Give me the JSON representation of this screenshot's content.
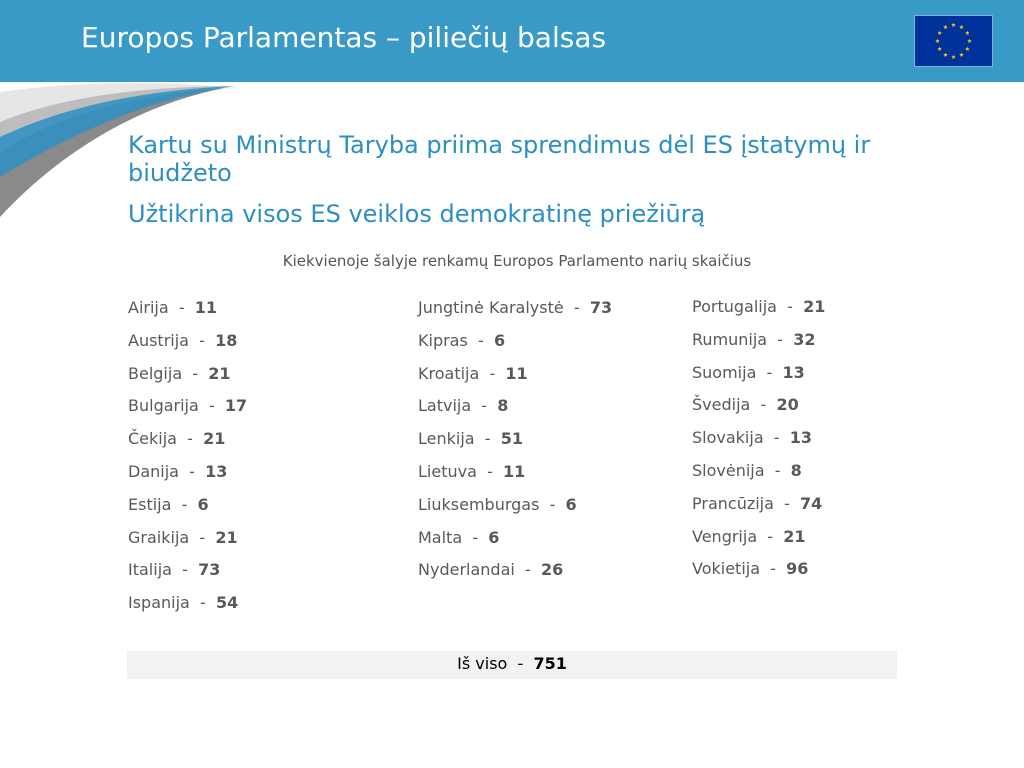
{
  "header": {
    "title": "Europos Parlamentas – piliečių balsas"
  },
  "colors": {
    "header_bg": "#3a9ac7",
    "accent_text": "#2b8fc4",
    "flag_blue": "#003399",
    "flag_star": "#ffcc00"
  },
  "icons": {
    "flag": "eu-flag-icon"
  },
  "bullets": [
    "Kartu su Ministrų Taryba priima sprendimus dėl ES įstatymų ir biudžeto",
    "Užtikrina visos ES veiklos demokratinę priežiūrą"
  ],
  "subtitle": "Kiekvienoje šalyje renkamų Europos Parlamento narių skaičius",
  "columns": [
    [
      {
        "name": "Airija",
        "sep": "-",
        "num": "11"
      },
      {
        "name": "Austrija",
        "sep": "-",
        "num": "18"
      },
      {
        "name": "Belgija",
        "sep": "-",
        "num": "21"
      },
      {
        "name": "Bulgarija",
        "sep": "-",
        "num": "17"
      },
      {
        "name": "Čekija",
        "sep": "-",
        "num": "21"
      },
      {
        "name": "Danija",
        "sep": "-",
        "num": "13"
      },
      {
        "name": "Estija",
        "sep": "-",
        "num": "6"
      },
      {
        "name": "Graikija",
        "sep": "-",
        "num": "21"
      },
      {
        "name": "Italija",
        "sep": "-",
        "num": "73"
      },
      {
        "name": "Ispanija",
        "sep": "-",
        "num": "54"
      }
    ],
    [
      {
        "name": "Jungtinė Karalystė",
        "sep": "-",
        "num": "73"
      },
      {
        "name": "Kipras",
        "sep": "-",
        "num": "6"
      },
      {
        "name": "Kroatija",
        "sep": "-",
        "num": "11"
      },
      {
        "name": "Latvija",
        "sep": "-",
        "num": "8"
      },
      {
        "name": "Lenkija",
        "sep": "-",
        "num": "51"
      },
      {
        "name": "Lietuva",
        "sep": "-",
        "num": "11"
      },
      {
        "name": "Liuksemburgas",
        "sep": "-",
        "num": "6"
      },
      {
        "name": "Malta",
        "sep": "-",
        "num": "6"
      },
      {
        "name": "Nyderlandai",
        "sep": "-",
        "num": "26"
      }
    ],
    [
      {
        "name": "Portugalija",
        "sep": "-",
        "num": "21"
      },
      {
        "name": "Rumunija",
        "sep": "-",
        "num": "32"
      },
      {
        "name": "Suomija",
        "sep": "-",
        "num": "13"
      },
      {
        "name": "Švedija",
        "sep": "-",
        "num": "20"
      },
      {
        "name": "Slovakija",
        "sep": "-",
        "num": "13"
      },
      {
        "name": "Slovėnija",
        "sep": "-",
        "num": "8"
      },
      {
        "name": "Prancūzija",
        "sep": "-",
        "num": "74"
      },
      {
        "name": "Vengrija",
        "sep": "-",
        "num": "21"
      },
      {
        "name": "Vokietija",
        "sep": "-",
        "num": "96"
      }
    ]
  ],
  "total": {
    "label": "Iš viso",
    "sep": "-",
    "num": "751"
  }
}
